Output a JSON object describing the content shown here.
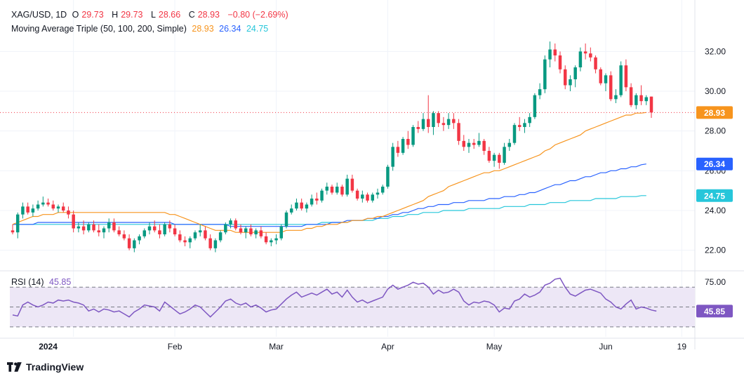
{
  "header": {
    "symbol": "XAG/USD, 1D",
    "open_label": "O",
    "open": "29.73",
    "high_label": "H",
    "high": "29.73",
    "low_label": "L",
    "low": "28.66",
    "close_label": "C",
    "close": "28.93",
    "change": "−0.80 (−2.69%)",
    "indicator_name": "Moving Average Triple (50, 100, 200, Simple)",
    "ma50_value": "28.93",
    "ma100_value": "26.34",
    "ma200_value": "24.75",
    "rsi_name": "RSI (14)",
    "rsi_value": "45.85"
  },
  "branding": {
    "name": "TradingView"
  },
  "colors": {
    "up": "#089981",
    "down": "#f23645",
    "ma50": "#f7941d",
    "ma100": "#2962ff",
    "ma200": "#26c6da",
    "rsi": "#7e57c2",
    "rsi_band": "#ede7f6",
    "grid": "#f0f3fa",
    "axis_text": "#131722"
  },
  "chart_data": [
    {
      "type": "candlestick",
      "title": "XAG/USD, 1D",
      "x_axis_labels": [
        "2024",
        "Feb",
        "Mar",
        "Apr",
        "May",
        "Jun",
        "19"
      ],
      "y_ticks": [
        "22.00",
        "24.00",
        "26.00",
        "28.00",
        "30.00",
        "32.00"
      ],
      "ylim": [
        21.0,
        33.0
      ],
      "price_labels": [
        {
          "value": 28.93,
          "text": "28.93",
          "series": "ma50"
        },
        {
          "value": 26.34,
          "text": "26.34",
          "series": "ma100"
        },
        {
          "value": 24.75,
          "text": "24.75",
          "series": "ma200"
        }
      ],
      "last_price_line": 28.93,
      "candles": [
        [
          23.0,
          23.3,
          22.8,
          22.9
        ],
        [
          22.9,
          23.9,
          22.6,
          23.8
        ],
        [
          23.8,
          24.4,
          23.6,
          24.2
        ],
        [
          24.2,
          24.4,
          23.8,
          23.9
        ],
        [
          23.9,
          24.3,
          23.7,
          24.1
        ],
        [
          24.1,
          24.5,
          24.0,
          24.3
        ],
        [
          24.3,
          24.7,
          24.2,
          24.4
        ],
        [
          24.4,
          24.6,
          24.2,
          24.3
        ],
        [
          24.3,
          24.5,
          24.0,
          24.1
        ],
        [
          24.1,
          24.3,
          23.9,
          24.2
        ],
        [
          24.2,
          24.4,
          23.9,
          24.0
        ],
        [
          24.0,
          24.2,
          23.6,
          23.8
        ],
        [
          23.8,
          24.0,
          22.9,
          23.1
        ],
        [
          23.1,
          23.4,
          22.9,
          23.2
        ],
        [
          23.2,
          23.5,
          22.8,
          23.0
        ],
        [
          23.0,
          23.4,
          22.9,
          23.3
        ],
        [
          23.3,
          23.5,
          22.9,
          23.0
        ],
        [
          23.0,
          23.3,
          22.7,
          22.9
        ],
        [
          22.9,
          23.2,
          22.6,
          23.1
        ],
        [
          23.1,
          23.6,
          22.9,
          23.4
        ],
        [
          23.4,
          23.6,
          22.9,
          23.0
        ],
        [
          23.0,
          23.2,
          22.7,
          22.8
        ],
        [
          22.8,
          23.0,
          22.5,
          22.6
        ],
        [
          22.6,
          22.8,
          22.0,
          22.1
        ],
        [
          22.1,
          22.6,
          21.9,
          22.5
        ],
        [
          22.5,
          22.8,
          22.3,
          22.7
        ],
        [
          22.7,
          23.1,
          22.6,
          23.0
        ],
        [
          23.0,
          23.4,
          22.8,
          23.2
        ],
        [
          23.2,
          23.5,
          22.9,
          23.0
        ],
        [
          23.0,
          23.3,
          22.6,
          22.8
        ],
        [
          22.8,
          23.4,
          22.7,
          23.3
        ],
        [
          23.3,
          23.5,
          22.9,
          23.1
        ],
        [
          23.1,
          23.3,
          22.7,
          22.8
        ],
        [
          22.8,
          23.0,
          22.4,
          22.5
        ],
        [
          22.5,
          22.7,
          22.2,
          22.4
        ],
        [
          22.4,
          22.7,
          22.1,
          22.6
        ],
        [
          22.6,
          23.0,
          22.5,
          22.9
        ],
        [
          22.9,
          23.3,
          22.7,
          23.0
        ],
        [
          23.0,
          23.2,
          22.5,
          22.6
        ],
        [
          22.6,
          22.8,
          22.0,
          22.1
        ],
        [
          22.1,
          22.6,
          21.9,
          22.5
        ],
        [
          22.5,
          23.0,
          22.4,
          22.9
        ],
        [
          22.9,
          23.4,
          22.8,
          23.3
        ],
        [
          23.3,
          23.6,
          23.1,
          23.5
        ],
        [
          23.5,
          23.6,
          23.0,
          23.1
        ],
        [
          23.1,
          23.3,
          22.8,
          22.9
        ],
        [
          22.9,
          23.2,
          22.6,
          23.1
        ],
        [
          23.1,
          23.3,
          22.7,
          22.8
        ],
        [
          22.8,
          23.1,
          22.6,
          23.0
        ],
        [
          23.0,
          23.2,
          22.6,
          22.7
        ],
        [
          22.7,
          22.9,
          22.3,
          22.4
        ],
        [
          22.4,
          22.6,
          22.2,
          22.5
        ],
        [
          22.5,
          22.8,
          22.3,
          22.6
        ],
        [
          22.6,
          23.3,
          22.5,
          23.2
        ],
        [
          23.2,
          24.0,
          23.1,
          23.9
        ],
        [
          23.9,
          24.3,
          23.8,
          24.1
        ],
        [
          24.1,
          24.6,
          24.0,
          24.4
        ],
        [
          24.4,
          24.6,
          24.0,
          24.1
        ],
        [
          24.1,
          24.4,
          23.9,
          24.3
        ],
        [
          24.3,
          24.8,
          24.2,
          24.6
        ],
        [
          24.6,
          24.9,
          24.3,
          24.5
        ],
        [
          24.5,
          25.1,
          24.4,
          25.0
        ],
        [
          25.0,
          25.4,
          24.8,
          25.2
        ],
        [
          25.2,
          25.3,
          24.8,
          24.9
        ],
        [
          24.9,
          25.4,
          24.8,
          25.2
        ],
        [
          25.2,
          25.3,
          24.7,
          24.8
        ],
        [
          24.8,
          25.8,
          24.7,
          25.6
        ],
        [
          25.6,
          25.8,
          24.9,
          25.0
        ],
        [
          25.0,
          25.1,
          24.5,
          24.6
        ],
        [
          24.6,
          25.0,
          24.4,
          24.8
        ],
        [
          24.8,
          24.9,
          24.4,
          24.5
        ],
        [
          24.5,
          24.9,
          24.4,
          24.8
        ],
        [
          24.8,
          25.1,
          24.6,
          24.9
        ],
        [
          24.9,
          25.3,
          24.8,
          25.2
        ],
        [
          25.2,
          26.3,
          25.1,
          26.2
        ],
        [
          26.2,
          27.4,
          26.0,
          27.2
        ],
        [
          27.2,
          27.5,
          26.7,
          26.9
        ],
        [
          26.9,
          27.7,
          26.8,
          27.6
        ],
        [
          27.6,
          28.0,
          27.1,
          27.3
        ],
        [
          27.3,
          28.3,
          27.2,
          28.2
        ],
        [
          28.2,
          28.5,
          27.9,
          28.1
        ],
        [
          28.1,
          28.9,
          28.0,
          28.6
        ],
        [
          28.6,
          29.8,
          27.9,
          28.2
        ],
        [
          28.2,
          29.0,
          27.8,
          28.9
        ],
        [
          28.9,
          29.0,
          28.2,
          28.4
        ],
        [
          28.4,
          28.7,
          28.0,
          28.3
        ],
        [
          28.3,
          28.9,
          28.1,
          28.6
        ],
        [
          28.6,
          28.9,
          28.1,
          28.4
        ],
        [
          28.4,
          28.6,
          27.3,
          27.5
        ],
        [
          27.5,
          27.8,
          27.0,
          27.2
        ],
        [
          27.2,
          27.6,
          26.9,
          27.4
        ],
        [
          27.4,
          27.6,
          27.1,
          27.3
        ],
        [
          27.3,
          27.9,
          27.2,
          27.5
        ],
        [
          27.5,
          27.6,
          26.8,
          27.0
        ],
        [
          27.0,
          27.2,
          26.4,
          26.5
        ],
        [
          26.5,
          26.9,
          26.2,
          26.8
        ],
        [
          26.8,
          26.9,
          26.1,
          26.4
        ],
        [
          26.4,
          27.4,
          26.3,
          27.2
        ],
        [
          27.2,
          27.6,
          27.0,
          27.4
        ],
        [
          27.4,
          28.4,
          27.3,
          28.3
        ],
        [
          28.3,
          28.7,
          28.0,
          28.2
        ],
        [
          28.2,
          28.6,
          27.9,
          28.4
        ],
        [
          28.4,
          28.9,
          28.2,
          28.7
        ],
        [
          28.7,
          29.9,
          28.6,
          29.8
        ],
        [
          29.8,
          30.4,
          29.6,
          30.1
        ],
        [
          30.1,
          31.8,
          29.9,
          31.6
        ],
        [
          31.6,
          32.5,
          31.2,
          32.1
        ],
        [
          32.1,
          32.4,
          31.5,
          31.8
        ],
        [
          31.8,
          32.0,
          30.9,
          31.1
        ],
        [
          31.1,
          31.3,
          30.1,
          30.3
        ],
        [
          30.3,
          30.8,
          30.0,
          30.6
        ],
        [
          30.6,
          31.3,
          30.2,
          31.2
        ],
        [
          31.2,
          32.2,
          31.0,
          32.0
        ],
        [
          32.0,
          32.4,
          31.6,
          31.9
        ],
        [
          31.9,
          32.2,
          31.5,
          31.7
        ],
        [
          31.7,
          31.8,
          30.9,
          31.1
        ],
        [
          31.1,
          31.2,
          30.3,
          30.4
        ],
        [
          30.4,
          30.9,
          30.0,
          30.8
        ],
        [
          30.8,
          31.0,
          29.5,
          29.6
        ],
        [
          29.6,
          30.1,
          29.4,
          29.8
        ],
        [
          29.8,
          31.5,
          29.7,
          31.3
        ],
        [
          31.3,
          31.6,
          30.0,
          30.2
        ],
        [
          30.2,
          30.4,
          29.2,
          29.3
        ],
        [
          29.3,
          29.9,
          29.1,
          29.8
        ],
        [
          29.8,
          30.3,
          29.3,
          29.5
        ],
        [
          29.5,
          29.8,
          29.3,
          29.7
        ],
        [
          29.73,
          29.73,
          28.66,
          28.93
        ]
      ],
      "ma50": [
        23.3,
        23.4,
        23.5,
        23.6,
        23.7,
        23.7,
        23.8,
        23.8,
        23.8,
        23.9,
        23.9,
        23.9,
        23.9,
        23.9,
        23.9,
        23.9,
        23.9,
        23.9,
        23.9,
        23.9,
        23.9,
        23.9,
        23.9,
        23.9,
        23.9,
        23.9,
        23.9,
        23.9,
        23.9,
        23.9,
        23.9,
        23.8,
        23.8,
        23.7,
        23.6,
        23.5,
        23.4,
        23.3,
        23.2,
        23.1,
        23.0,
        23.0,
        23.0,
        23.0,
        22.9,
        22.9,
        22.9,
        22.9,
        22.9,
        22.9,
        22.9,
        22.9,
        22.9,
        22.9,
        23.0,
        23.0,
        23.0,
        23.0,
        23.1,
        23.1,
        23.2,
        23.2,
        23.3,
        23.3,
        23.3,
        23.4,
        23.4,
        23.5,
        23.5,
        23.5,
        23.6,
        23.6,
        23.7,
        23.7,
        23.8,
        23.9,
        24.0,
        24.1,
        24.2,
        24.3,
        24.4,
        24.5,
        24.7,
        24.8,
        24.9,
        25.0,
        25.2,
        25.3,
        25.4,
        25.5,
        25.6,
        25.7,
        25.8,
        25.9,
        25.9,
        26.0,
        26.0,
        26.1,
        26.2,
        26.3,
        26.4,
        26.5,
        26.6,
        26.7,
        26.8,
        27.0,
        27.1,
        27.3,
        27.4,
        27.5,
        27.6,
        27.7,
        27.8,
        28.0,
        28.1,
        28.2,
        28.3,
        28.4,
        28.5,
        28.6,
        28.7,
        28.8,
        28.8,
        28.9,
        28.9,
        28.93
      ],
      "ma100": [
        23.3,
        23.3,
        23.3,
        23.3,
        23.3,
        23.4,
        23.4,
        23.4,
        23.4,
        23.4,
        23.4,
        23.4,
        23.4,
        23.4,
        23.4,
        23.4,
        23.4,
        23.4,
        23.4,
        23.4,
        23.4,
        23.4,
        23.4,
        23.4,
        23.4,
        23.4,
        23.4,
        23.4,
        23.4,
        23.4,
        23.4,
        23.4,
        23.3,
        23.3,
        23.3,
        23.3,
        23.3,
        23.3,
        23.3,
        23.3,
        23.3,
        23.3,
        23.3,
        23.2,
        23.2,
        23.2,
        23.2,
        23.2,
        23.2,
        23.2,
        23.2,
        23.2,
        23.2,
        23.2,
        23.2,
        23.2,
        23.2,
        23.2,
        23.3,
        23.3,
        23.3,
        23.3,
        23.3,
        23.4,
        23.4,
        23.4,
        23.5,
        23.5,
        23.5,
        23.5,
        23.6,
        23.6,
        23.6,
        23.7,
        23.7,
        23.8,
        23.8,
        23.9,
        23.9,
        24.0,
        24.1,
        24.1,
        24.2,
        24.2,
        24.3,
        24.3,
        24.3,
        24.4,
        24.4,
        24.4,
        24.5,
        24.5,
        24.5,
        24.5,
        24.6,
        24.6,
        24.6,
        24.7,
        24.7,
        24.7,
        24.8,
        24.8,
        24.9,
        24.9,
        25.0,
        25.1,
        25.2,
        25.3,
        25.3,
        25.4,
        25.5,
        25.5,
        25.6,
        25.7,
        25.7,
        25.8,
        25.9,
        25.9,
        26.0,
        26.0,
        26.1,
        26.1,
        26.2,
        26.2,
        26.3,
        26.34
      ],
      "ma200": [
        23.3,
        23.3,
        23.3,
        23.3,
        23.3,
        23.3,
        23.3,
        23.3,
        23.3,
        23.3,
        23.3,
        23.3,
        23.3,
        23.3,
        23.3,
        23.3,
        23.3,
        23.3,
        23.3,
        23.3,
        23.3,
        23.3,
        23.3,
        23.3,
        23.3,
        23.3,
        23.3,
        23.3,
        23.3,
        23.3,
        23.3,
        23.3,
        23.3,
        23.3,
        23.3,
        23.3,
        23.3,
        23.3,
        23.3,
        23.3,
        23.3,
        23.3,
        23.3,
        23.3,
        23.3,
        23.3,
        23.3,
        23.3,
        23.3,
        23.3,
        23.3,
        23.3,
        23.3,
        23.3,
        23.3,
        23.3,
        23.3,
        23.3,
        23.3,
        23.3,
        23.3,
        23.4,
        23.4,
        23.4,
        23.4,
        23.4,
        23.4,
        23.5,
        23.5,
        23.5,
        23.5,
        23.5,
        23.6,
        23.6,
        23.6,
        23.7,
        23.7,
        23.7,
        23.8,
        23.8,
        23.8,
        23.9,
        23.9,
        23.9,
        23.9,
        24.0,
        24.0,
        24.0,
        24.0,
        24.0,
        24.1,
        24.1,
        24.1,
        24.1,
        24.1,
        24.1,
        24.1,
        24.2,
        24.2,
        24.2,
        24.2,
        24.2,
        24.3,
        24.3,
        24.3,
        24.3,
        24.4,
        24.4,
        24.4,
        24.4,
        24.5,
        24.5,
        24.5,
        24.5,
        24.5,
        24.6,
        24.6,
        24.6,
        24.6,
        24.6,
        24.7,
        24.7,
        24.7,
        24.7,
        24.75,
        24.75
      ]
    },
    {
      "type": "line",
      "title": "RSI (14)",
      "y_ticks": [
        "75.00"
      ],
      "levels": [
        70,
        50,
        30
      ],
      "ylim": [
        20,
        85
      ],
      "last_value_label": "45.85",
      "values": [
        42,
        41,
        52,
        55,
        52,
        50,
        52,
        55,
        54,
        57,
        56,
        57,
        55,
        54,
        52,
        46,
        48,
        45,
        48,
        47,
        45,
        46,
        43,
        40,
        45,
        48,
        52,
        51,
        50,
        46,
        55,
        51,
        47,
        43,
        45,
        48,
        52,
        50,
        45,
        40,
        45,
        50,
        56,
        58,
        54,
        52,
        54,
        50,
        52,
        49,
        45,
        47,
        48,
        53,
        58,
        62,
        65,
        60,
        62,
        64,
        62,
        65,
        68,
        63,
        65,
        60,
        67,
        60,
        55,
        57,
        54,
        56,
        58,
        60,
        68,
        72,
        68,
        70,
        72,
        75,
        73,
        74,
        70,
        63,
        67,
        64,
        65,
        68,
        65,
        56,
        52,
        55,
        54,
        56,
        55,
        52,
        45,
        49,
        48,
        56,
        58,
        63,
        60,
        62,
        65,
        72,
        74,
        78,
        79,
        70,
        63,
        61,
        64,
        67,
        68,
        66,
        64,
        58,
        55,
        50,
        48,
        53,
        57,
        48,
        50,
        49,
        47,
        45.85
      ]
    }
  ]
}
